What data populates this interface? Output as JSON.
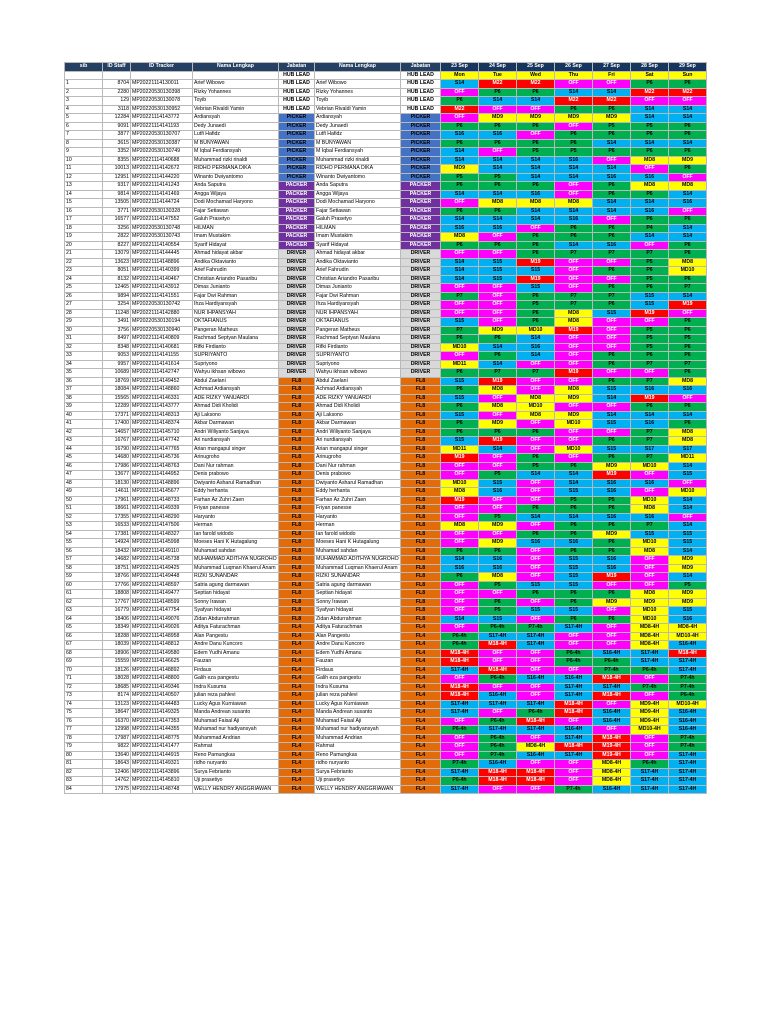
{
  "headers": [
    "sib",
    "ID Staff",
    "ID Tracker",
    "Nama Lengkap",
    "Jabatan",
    "Nama Lengkap",
    "Jabatan",
    "23 Sep",
    "24 Sep",
    "25 Sep",
    "26 Sep",
    "27 Sep",
    "28 Sep",
    "29 Sep"
  ],
  "days": [
    "Mon",
    "Tue",
    "Wed",
    "Thu",
    "Fri",
    "Sat",
    "Sun"
  ],
  "hub_lead_label": "HUB LEAD",
  "rows": [
    [
      "1",
      "8704",
      "MP20221114130011",
      "Arief Wibowo",
      "HUB LEAD",
      "S14",
      "M22",
      "M22",
      "OFF",
      "OFF",
      "P6",
      "P6"
    ],
    [
      "2",
      "2280",
      "MP20220530130398",
      "Rizky Yohannes",
      "HUB LEAD",
      "OFF",
      "P6",
      "P6",
      "S14",
      "S14",
      "M22",
      "M22"
    ],
    [
      "3",
      "129",
      "MP20220530130078",
      "Toyib",
      "HUB LEAD",
      "P6",
      "S14",
      "S14",
      "M22",
      "M22",
      "OFF",
      "OFF"
    ],
    [
      "4",
      "3118",
      "MP20220530130952",
      "Vebrian Rivaldi Yamin",
      "HUB LEAD",
      "M22",
      "OFF",
      "OFF",
      "P6",
      "P6",
      "S14",
      "S14"
    ],
    [
      "5",
      "12284",
      "MP20221114143772",
      "Ardiansyah",
      "PICKER",
      "OFF",
      "MD9",
      "MD9",
      "MD9",
      "MD9",
      "S14",
      "S14"
    ],
    [
      "6",
      "9091",
      "MP20221114141193",
      "Dedy Junaedi",
      "PICKER",
      "P6",
      "P6",
      "P6",
      "OFF",
      "P5",
      "P5",
      "P6"
    ],
    [
      "7",
      "3877",
      "MP20220530130707",
      "Lutfi Hafidz",
      "PICKER",
      "S16",
      "S16",
      "OFF",
      "P6",
      "P6",
      "P6",
      "P6"
    ],
    [
      "8",
      "3615",
      "MP20220530130387",
      "M BUNYAWAN",
      "PICKER",
      "P6",
      "P6",
      "P6",
      "P6",
      "S14",
      "S14",
      "S14"
    ],
    [
      "9",
      "3352",
      "MP20220530130749",
      "M Iqbal Ferdiansyah",
      "PICKER",
      "S14",
      "OFF",
      "P5",
      "P5",
      "P6",
      "P6",
      "P6"
    ],
    [
      "10",
      "8355",
      "MP20221114140688",
      "Muhammad rizki rinaldi",
      "PICKER",
      "S14",
      "S14",
      "S14",
      "S16",
      "OFF",
      "MD8",
      "MD9"
    ],
    [
      "11",
      "10013",
      "MP20221114142672",
      "RIDHO PERMANA DIKA",
      "PICKER",
      "MD9",
      "S14",
      "S14",
      "S14",
      "S14",
      "OFF",
      "P6"
    ],
    [
      "12",
      "12951",
      "MP20221114144220",
      "Winanto Dwiyantomo",
      "PICKER",
      "P5",
      "P5",
      "S14",
      "S14",
      "S16",
      "S16",
      "OFF"
    ],
    [
      "13",
      "9317",
      "MP20221114141243",
      "Anda Saputra",
      "PACKER",
      "P6",
      "P6",
      "P6",
      "OFF",
      "P6",
      "MD8",
      "MD8"
    ],
    [
      "14",
      "9814",
      "MP20221114141469",
      "Angga Wijaya",
      "PACKER",
      "S14",
      "S14",
      "S16",
      "OFF",
      "P6",
      "P6",
      "S14"
    ],
    [
      "15",
      "13505",
      "MP20221114144724",
      "Dodi Mochamad Haryono",
      "PACKER",
      "OFF",
      "MD8",
      "MD8",
      "MD8",
      "S14",
      "S14",
      "S16"
    ],
    [
      "16",
      "3771",
      "MP20220530130328",
      "Fajar Setiawan",
      "PACKER",
      "P6",
      "P6",
      "S14",
      "S14",
      "S14",
      "S16",
      "OFF"
    ],
    [
      "17",
      "16577",
      "MP20221114147552",
      "Galuh Prasetyo",
      "PACKER",
      "S14",
      "S14",
      "S14",
      "S16",
      "OFF",
      "P6",
      "P6"
    ],
    [
      "18",
      "3256",
      "MP20220530130748",
      "HILMAN",
      "PACKER",
      "S16",
      "S16",
      "OFF",
      "P6",
      "P6",
      "P4",
      "S14"
    ],
    [
      "19",
      "2822",
      "MP20220530130743",
      "Imam Mustakim",
      "PACKER",
      "MD8",
      "OFF",
      "P6",
      "P6",
      "P6",
      "S14",
      "S14"
    ],
    [
      "20",
      "8227",
      "MP20221114140554",
      "Syarif Hidayat",
      "PACKER",
      "P6",
      "P6",
      "P6",
      "S14",
      "S16",
      "OFF",
      "P6"
    ],
    [
      "21",
      "13079",
      "MP20221114144445",
      "Ahmad hidayat akbar",
      "DRIVER",
      "OFF",
      "OFF",
      "P6",
      "P7",
      "P7",
      "P7",
      "P6"
    ],
    [
      "22",
      "13623",
      "MP20221114148896",
      "Andika Oktavianto",
      "DRIVER",
      "S14",
      "S15",
      "M19",
      "OFF",
      "OFF",
      "P5",
      "MD8"
    ],
    [
      "23",
      "8051",
      "MP20221114140399",
      "Arief Fahrudin",
      "DRIVER",
      "S14",
      "S15",
      "S15",
      "OFF",
      "P6",
      "P6",
      "MD10"
    ],
    [
      "24",
      "8132",
      "MP20221114140467",
      "Christian Ariandro Pasaribu",
      "DRIVER",
      "S14",
      "S15",
      "M19",
      "OFF",
      "OFF",
      "P5",
      "P6"
    ],
    [
      "25",
      "12465",
      "MP20221114143912",
      "Dimas Junianto",
      "DRIVER",
      "OFF",
      "OFF",
      "S15",
      "OFF",
      "P6",
      "P6",
      "P7"
    ],
    [
      "26",
      "9894",
      "MP20221114141551",
      "Fajar Dwi Rahman",
      "DRIVER",
      "P7",
      "OFF",
      "P6",
      "P7",
      "P7",
      "S15",
      "S14"
    ],
    [
      "27",
      "3254",
      "MP20220530130742",
      "Ihza Hardiyansyah",
      "DRIVER",
      "OFF",
      "OFF",
      "P5",
      "P7",
      "P6",
      "S15",
      "M19"
    ],
    [
      "28",
      "11248",
      "MP20221114142880",
      "NUR IHPANSYAH",
      "DRIVER",
      "OFF",
      "OFF",
      "P6",
      "MD8",
      "S15",
      "M19",
      "OFF"
    ],
    [
      "29",
      "3491",
      "MP20220530130194",
      "OKTAFIANUS",
      "DRIVER",
      "S15",
      "OFF",
      "P6",
      "MD8",
      "OFF",
      "OFF",
      "P6"
    ],
    [
      "30",
      "3756",
      "MP20220530130940",
      "Pangeran Matheus",
      "DRIVER",
      "P7",
      "MD9",
      "MD10",
      "M19",
      "OFF",
      "P5",
      "P6"
    ],
    [
      "31",
      "8497",
      "MP20221114140809",
      "Rachmad Septyan Maulana",
      "DRIVER",
      "P6",
      "P6",
      "S14",
      "OFF",
      "OFF",
      "P5",
      "P5"
    ],
    [
      "32",
      "8348",
      "MP20221114140681",
      "Rifki Firdianto",
      "DRIVER",
      "MD10",
      "S14",
      "S16",
      "OFF",
      "OFF",
      "P5",
      "P6"
    ],
    [
      "33",
      "9053",
      "MP20221114141155",
      "SUPRIYANTO",
      "DRIVER",
      "OFF",
      "P6",
      "S14",
      "OFF",
      "P6",
      "P6",
      "P6"
    ],
    [
      "34",
      "9957",
      "MP20221114141614",
      "Supriyono",
      "DRIVER",
      "MD11",
      "S14",
      "OFF",
      "OFF",
      "P6",
      "P7",
      "P7"
    ],
    [
      "35",
      "10689",
      "MP20221114142747",
      "Wahyu ikhsan wibowo",
      "DRIVER",
      "P6",
      "P7",
      "P7",
      "M19",
      "OFF",
      "OFF",
      "P6"
    ],
    [
      "36",
      "18769",
      "MP20221114149452",
      "Abdul Zaelani",
      "FL8",
      "S15",
      "M19",
      "OFF",
      "OFF",
      "P6",
      "P7",
      "MD8"
    ],
    [
      "37",
      "18084",
      "MP20221114148860",
      "Achmad Ardiansyah",
      "FL8",
      "P6",
      "MD8",
      "OFF",
      "MD8",
      "S15",
      "S16",
      "S16"
    ],
    [
      "38",
      "15565",
      "MP20221114146331",
      "ADE RIZKY YANUARDI",
      "FL8",
      "S15",
      "OFF",
      "MD8",
      "MD9",
      "S14",
      "M19",
      "OFF"
    ],
    [
      "39",
      "12289",
      "MP20221114143777",
      "Ahmad Didi Kholidi",
      "FL8",
      "P6",
      "MD8",
      "MD10",
      "OFF",
      "OFF",
      "P6",
      "P6"
    ],
    [
      "40",
      "17371",
      "MP20221114148313",
      "Aji Laksono",
      "FL8",
      "S15",
      "OFF",
      "MD8",
      "MD9",
      "S14",
      "S14",
      "S14"
    ],
    [
      "41",
      "17400",
      "MP20221114148374",
      "Akbar Darmawan",
      "FL8",
      "P6",
      "MD9",
      "OFF",
      "MD10",
      "S15",
      "S16",
      "P6"
    ],
    [
      "42",
      "14657",
      "MP20221114145710",
      "Andri Wiliyanto Sanjaya",
      "FL8",
      "P6",
      "P6",
      "P6",
      "OFF",
      "OFF",
      "P7",
      "MD8"
    ],
    [
      "43",
      "16767",
      "MP20221114147742",
      "Ari nurdiansyah",
      "FL8",
      "S15",
      "M19",
      "OFF",
      "OFF",
      "P6",
      "P7",
      "MD8"
    ],
    [
      "44",
      "16790",
      "MP20221114147765",
      "Arian mangapul singer",
      "FL8",
      "MD11",
      "S14",
      "OFF",
      "MD10",
      "S15",
      "S17",
      "S17"
    ],
    [
      "45",
      "14680",
      "MP20221114145736",
      "Arinugroho",
      "FL8",
      "M19",
      "OFF",
      "P6",
      "OFF",
      "P6",
      "P7",
      "MD11"
    ],
    [
      "46",
      "17986",
      "MP20221114148763",
      "Dani Nur rahman",
      "FL8",
      "OFF",
      "OFF",
      "P5",
      "P6",
      "MD9",
      "MD10",
      "S14"
    ],
    [
      "47",
      "13677",
      "MP20221114144952",
      "Denis prabowo",
      "FL8",
      "OFF",
      "P5",
      "S14",
      "S14",
      "M19",
      "OFF",
      "S15"
    ],
    [
      "48",
      "18130",
      "MP20221114148896",
      "Dwiyanto Asharul Ramadhan",
      "FL8",
      "MD10",
      "S15",
      "OFF",
      "S14",
      "S16",
      "S16",
      "OFF"
    ],
    [
      "49",
      "14611",
      "MP20221114145677",
      "Eddy herhanta",
      "FL8",
      "MD8",
      "S16",
      "OFF",
      "S15",
      "S16",
      "OFF",
      "MD10"
    ],
    [
      "50",
      "17961",
      "MP20221114148733",
      "Farhan Az Zuhri Zaen",
      "FL8",
      "M19",
      "OFF",
      "OFF",
      "P5",
      "P5",
      "MD10",
      "S14"
    ],
    [
      "51",
      "18661",
      "MP20221114149339",
      "Friyan panesse",
      "FL8",
      "OFF",
      "OFF",
      "P6",
      "P6",
      "P6",
      "MD8",
      "S14"
    ],
    [
      "52",
      "17355",
      "MP20221114148290",
      "Haryanto",
      "FL8",
      "OFF",
      "P5",
      "S14",
      "S14",
      "S16",
      "S16",
      "OFF"
    ],
    [
      "53",
      "16533",
      "MP20221114147506",
      "Herman",
      "FL8",
      "MD8",
      "MD9",
      "OFF",
      "P6",
      "P6",
      "P7",
      "S14"
    ],
    [
      "54",
      "17381",
      "MP20221114148327",
      "Ian farold widodo",
      "FL8",
      "OFF",
      "OFF",
      "P6",
      "P6",
      "MD9",
      "S15",
      "S15"
    ],
    [
      "55",
      "14924",
      "MP20221114145998",
      "Moeses Hani K Hutagalung",
      "FL8",
      "OFF",
      "MD9",
      "S16",
      "S16",
      "P6",
      "MD10",
      "S15"
    ],
    [
      "56",
      "18432",
      "MP20221114149110",
      "Muhamad sahdan",
      "FL8",
      "P6",
      "P6",
      "OFF",
      "P6",
      "P6",
      "MD8",
      "S14"
    ],
    [
      "57",
      "14682",
      "MP20221114145738",
      "MUHAMMAD ADITHYA NUGROHO",
      "FL8",
      "S14",
      "S16",
      "OFF",
      "S15",
      "S16",
      "OFF",
      "MD9"
    ],
    [
      "58",
      "18751",
      "MP20221114149425",
      "Muhammad Luqman Khaerul Anam",
      "FL8",
      "S16",
      "S16",
      "OFF",
      "S15",
      "S16",
      "OFF",
      "MD9"
    ],
    [
      "59",
      "18766",
      "MP20221114149448",
      "RIZKI SUNANDAR",
      "FL8",
      "P6",
      "MD8",
      "OFF",
      "S15",
      "M19",
      "OFF",
      "S14"
    ],
    [
      "60",
      "17766",
      "MP20221114148597",
      "Satria agung darmawan",
      "FL8",
      "OFF",
      "P5",
      "S15",
      "S15",
      "OFF",
      "OFF",
      "P5"
    ],
    [
      "61",
      "18808",
      "MP20221114149477",
      "Septian hidayat",
      "FL8",
      "OFF",
      "OFF",
      "P6",
      "P6",
      "P6",
      "MD8",
      "MD9"
    ],
    [
      "62",
      "17767",
      "MP20221114148599",
      "Sonny Irawan",
      "FL8",
      "OFF",
      "P6",
      "OFF",
      "P6",
      "MD9",
      "MD9",
      "MD9"
    ],
    [
      "63",
      "16779",
      "MP20221114147754",
      "Syafyan hidayat",
      "FL8",
      "OFF",
      "P5",
      "S15",
      "S15",
      "OFF",
      "MD10",
      "S15"
    ],
    [
      "64",
      "18406",
      "MP20221114149076",
      "Zidan Abdurrahman",
      "FL8",
      "S14",
      "S15",
      "OFF",
      "P6",
      "P6",
      "MD10",
      "S16"
    ],
    [
      "65",
      "18349",
      "MP20221114149026",
      "Aditya Faturachman",
      "FL4",
      "OFF",
      "P6-4h",
      "P7-4h",
      "S17-4H",
      "OFF",
      "MD8-4H",
      "MD8-4H"
    ],
    [
      "66",
      "18288",
      "MP20221114148958",
      "Alan Pangestu",
      "FL4",
      "P6-4h",
      "S17-4H",
      "S17-4H",
      "OFF",
      "OFF",
      "MD8-4H",
      "MD10-4H"
    ],
    [
      "67",
      "18039",
      "MP20221114148812",
      "Andre Danu Kuncoro",
      "FL4",
      "P6-4h",
      "M18-4H",
      "S17-4H",
      "OFF",
      "OFF",
      "MD8-4H",
      "S16-4H"
    ],
    [
      "68",
      "18906",
      "MP20221114149580",
      "Edem Yudhi Amanu",
      "FL4",
      "M18-4H",
      "OFF",
      "OFF",
      "P6-4h",
      "S16-4H",
      "S17-4H",
      "M18-4H"
    ],
    [
      "69",
      "15559",
      "MP20221114146625",
      "Fauzan",
      "FL4",
      "M18-4H",
      "OFF",
      "OFF",
      "P6-4h",
      "P6-4h",
      "S17-4H",
      "S17-4H"
    ],
    [
      "70",
      "18126",
      "MP20221114148892",
      "Firdaus",
      "FL4",
      "S17-4H",
      "M18-4H",
      "OFF",
      "OFF",
      "P7-4h",
      "P6-4h",
      "S17-4H"
    ],
    [
      "71",
      "18028",
      "MP20221114148800",
      "Galih eza pangestu",
      "FL4",
      "OFF",
      "P6-4h",
      "S16-4H",
      "S16-4H",
      "M18-4H",
      "OFF",
      "P7-4h"
    ],
    [
      "72",
      "18685",
      "MP20221114149346",
      "Indra Kusuma",
      "FL4",
      "M18-4H",
      "OFF",
      "OFF",
      "S17-4H",
      "S17-4H",
      "P7-4h",
      "P7-4h"
    ],
    [
      "73",
      "8174",
      "MP20221114140507",
      "julian reza pahlevi",
      "FL4",
      "M18-4H",
      "S16-4H",
      "OFF",
      "S17-4H",
      "M18-4H",
      "OFF",
      "P6-4h"
    ],
    [
      "74",
      "13123",
      "MP20221114144483",
      "Lucky Agus Kurniawan",
      "FL4",
      "S17-4H",
      "S17-4H",
      "S17-4H",
      "M18-4H",
      "OFF",
      "MD9-4H",
      "MD10-4H"
    ],
    [
      "75",
      "18647",
      "MP20221114149325",
      "Manda Andrean susanto",
      "FL4",
      "S17-4H",
      "OFF",
      "P6-4h",
      "M18-4H",
      "S16-4H",
      "MD9-4H",
      "S16-4H"
    ],
    [
      "76",
      "16370",
      "MP20221114147353",
      "Muhamad Faisal Aji",
      "FL4",
      "OFF",
      "P6-4h",
      "M18-4H",
      "OFF",
      "S16-4H",
      "MD9-4H",
      "S16-4H"
    ],
    [
      "77",
      "12998",
      "MP20221114144355",
      "Muhamad nur hadiyansyah",
      "FL4",
      "P6-4h",
      "S17-4H",
      "S17-4H",
      "S16-4H",
      "OFF",
      "MD10-4H",
      "S16-4H"
    ],
    [
      "78",
      "17987",
      "MP20221114148775",
      "Muhammad Andrian",
      "FL4",
      "OFF",
      "P6-4h",
      "OFF",
      "S17-4H",
      "M18-4H",
      "OFF",
      "P7-4h"
    ],
    [
      "79",
      "9822",
      "MP20221114141477",
      "Rahmat",
      "FL4",
      "OFF",
      "P6-4h",
      "MD8-4H",
      "M18-4H",
      "M19-4H",
      "OFF",
      "P7-4h"
    ],
    [
      "80",
      "13640",
      "MP20221114144915",
      "Reno Pamungkas",
      "FL4",
      "OFF",
      "P7-4h",
      "S16-4H",
      "S17-4H",
      "M19-4H",
      "OFF",
      "S17-4H"
    ],
    [
      "81",
      "18643",
      "MP20221114149321",
      "ridho nuryanto",
      "FL4",
      "P7-4h",
      "S16-4H",
      "OFF",
      "OFF",
      "MD8-4H",
      "P6-4h",
      "S17-4H"
    ],
    [
      "82",
      "12406",
      "MP20221114143896",
      "Surya Febrianto",
      "FL4",
      "S17-4H",
      "M18-4H",
      "M18-4H",
      "OFF",
      "MD8-4H",
      "S17-4H",
      "S17-4H"
    ],
    [
      "83",
      "14762",
      "MP20221114145810",
      "Uji prasetiyo",
      "FL4",
      "P6-4h",
      "M18-4H",
      "M18-4H",
      "OFF",
      "MD8-4H",
      "S17-4H",
      "S17-4H"
    ],
    [
      "84",
      "17975",
      "MP20221114148748",
      "WELLY HENDRY ANGGRIAWAN",
      "FL4",
      "S17-4H",
      "OFF",
      "OFF",
      "P7-4h",
      "S16-4H",
      "S17-4H",
      "S17-4H"
    ]
  ]
}
